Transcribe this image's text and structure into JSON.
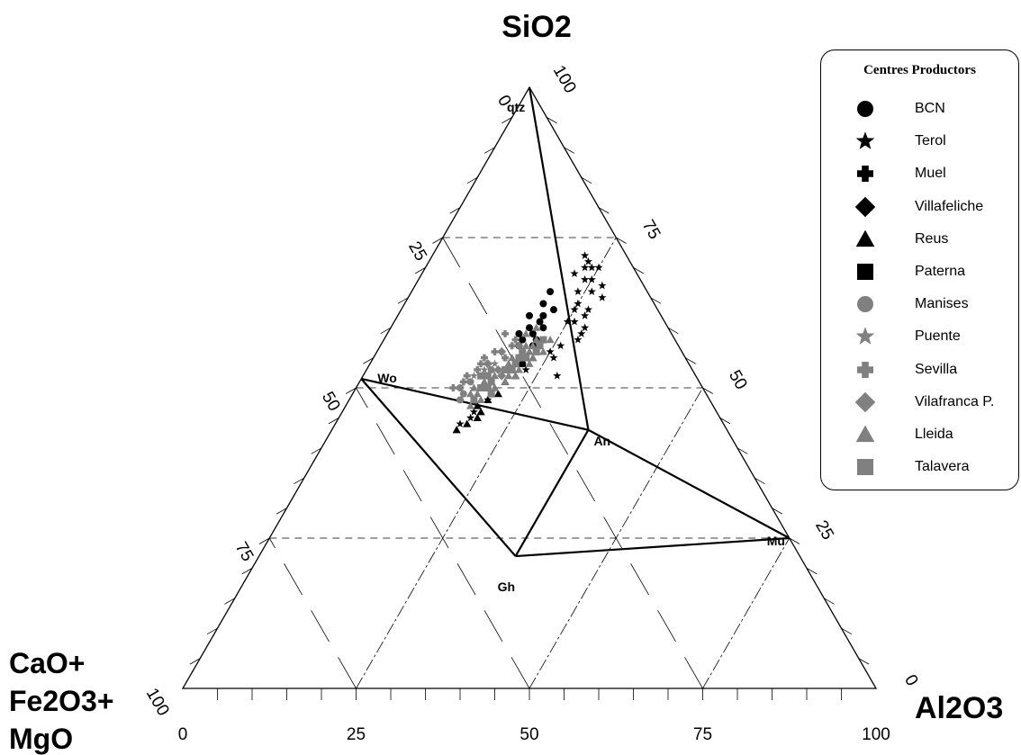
{
  "chart_data": {
    "type": "scatter",
    "subtype": "ternary",
    "vertex_labels": {
      "top": "SiO2",
      "left": [
        "CaO+",
        "Fe2O3+",
        "MgO"
      ],
      "right": "Al2O3"
    },
    "axis_ticks": [
      "0",
      "25",
      "50",
      "75",
      "100"
    ],
    "grid": "dashed lines at 25, 50, 75 for each component",
    "phases": [
      {
        "name": "qtz",
        "sio2": 100,
        "al2o3": 0,
        "cfm": 0
      },
      {
        "name": "Wo",
        "sio2": 51.5,
        "al2o3": 0,
        "cfm": 48.5
      },
      {
        "name": "An",
        "sio2": 43,
        "al2o3": 37,
        "cfm": 20
      },
      {
        "name": "Gh",
        "sio2": 22,
        "al2o3": 37,
        "cfm": 41
      },
      {
        "name": "Mu",
        "sio2": 25,
        "al2o3": 75,
        "cfm": 0
      }
    ],
    "tie_lines": [
      [
        "qtz",
        "An"
      ],
      [
        "Wo",
        "An"
      ],
      [
        "Wo",
        "Gh"
      ],
      [
        "Gh",
        "An"
      ],
      [
        "An",
        "Mu"
      ],
      [
        "Gh",
        "Mu"
      ]
    ],
    "legend": {
      "title": "Centres Productors",
      "position": "top-right",
      "entries": [
        {
          "label": "BCN",
          "symbol": "circle",
          "color": "#000000"
        },
        {
          "label": "Terol",
          "symbol": "star",
          "color": "#000000"
        },
        {
          "label": "Muel",
          "symbol": "plus",
          "color": "#000000"
        },
        {
          "label": "Villafeliche",
          "symbol": "diamond",
          "color": "#000000"
        },
        {
          "label": "Reus",
          "symbol": "triangle",
          "color": "#000000"
        },
        {
          "label": "Paterna",
          "symbol": "square",
          "color": "#000000"
        },
        {
          "label": "Manises",
          "symbol": "circle",
          "color": "#808080"
        },
        {
          "label": "Puente",
          "symbol": "star",
          "color": "#808080"
        },
        {
          "label": "Sevilla",
          "symbol": "plus",
          "color": "#808080"
        },
        {
          "label": "Vilafranca P.",
          "symbol": "diamond",
          "color": "#808080"
        },
        {
          "label": "Lleida",
          "symbol": "triangle",
          "color": "#808080"
        },
        {
          "label": "Talavera",
          "symbol": "square",
          "color": "#808080"
        }
      ]
    },
    "series": [
      {
        "name": "BCN",
        "points": [
          [
            66,
            20
          ],
          [
            64,
            20
          ],
          [
            63,
            22
          ],
          [
            62,
            21
          ],
          [
            61,
            21
          ],
          [
            60,
            22
          ],
          [
            59,
            21
          ],
          [
            58,
            22
          ],
          [
            57,
            22
          ],
          [
            60,
            20
          ],
          [
            62,
            19
          ],
          [
            58,
            20
          ],
          [
            56,
            21
          ],
          [
            55,
            21
          ],
          [
            59,
            19
          ],
          [
            57,
            20
          ],
          [
            54,
            22
          ]
        ]
      },
      {
        "name": "Terol",
        "points": [
          [
            72,
            22
          ],
          [
            71,
            23
          ],
          [
            70,
            24
          ],
          [
            69,
            22
          ],
          [
            70,
            25
          ],
          [
            68,
            25
          ],
          [
            67,
            27
          ],
          [
            66,
            26
          ],
          [
            65,
            28
          ],
          [
            63,
            27
          ],
          [
            62,
            27
          ],
          [
            60,
            28
          ],
          [
            59,
            28
          ],
          [
            58,
            28
          ],
          [
            55,
            26
          ],
          [
            52,
            28
          ],
          [
            64,
            25
          ],
          [
            61,
            26
          ],
          [
            57,
            26
          ],
          [
            70,
            23
          ],
          [
            66,
            24
          ],
          [
            63,
            25
          ],
          [
            56,
            25
          ],
          [
            53,
            23
          ],
          [
            48,
            20
          ],
          [
            46,
            19
          ],
          [
            45,
            19
          ],
          [
            44,
            18
          ],
          [
            61,
            25
          ],
          [
            68,
            24
          ]
        ]
      },
      {
        "name": "Reus",
        "points": [
          [
            47,
            19
          ],
          [
            46,
            20
          ],
          [
            45,
            20
          ],
          [
            44,
            19
          ],
          [
            43,
            18
          ],
          [
            48,
            20
          ],
          [
            50,
            20
          ],
          [
            52,
            22
          ],
          [
            54,
            22
          ],
          [
            56,
            22
          ],
          [
            49,
            21
          ],
          [
            51,
            21
          ],
          [
            55,
            23
          ]
        ]
      },
      {
        "name": "Manises",
        "points": [
          [
            50,
            15
          ],
          [
            49,
            16
          ],
          [
            48,
            16
          ],
          [
            51,
            16
          ],
          [
            52,
            17
          ],
          [
            53,
            18
          ]
        ]
      },
      {
        "name": "Puente",
        "points": [
          [
            53,
            17
          ],
          [
            52,
            16
          ],
          [
            54,
            18
          ],
          [
            55,
            19
          ]
        ]
      },
      {
        "name": "Sevilla",
        "points": [
          [
            55,
            16
          ],
          [
            54,
            16
          ],
          [
            53,
            16
          ],
          [
            52,
            15
          ],
          [
            56,
            17
          ],
          [
            57,
            19
          ],
          [
            58,
            19
          ],
          [
            51,
            15
          ],
          [
            50,
            14
          ],
          [
            55,
            19
          ],
          [
            59,
            17
          ],
          [
            54,
            17
          ]
        ]
      },
      {
        "name": "Vilafranca P.",
        "points": [
          [
            54,
            17
          ],
          [
            53,
            19
          ],
          [
            52,
            20
          ],
          [
            56,
            18
          ],
          [
            57,
            20
          ]
        ]
      },
      {
        "name": "Lleida",
        "points": [
          [
            50,
            17
          ],
          [
            51,
            18
          ],
          [
            52,
            19
          ],
          [
            53,
            20
          ],
          [
            54,
            21
          ],
          [
            55,
            21
          ],
          [
            56,
            22
          ],
          [
            57,
            22
          ],
          [
            49,
            18
          ],
          [
            48,
            19
          ],
          [
            50,
            20
          ],
          [
            51,
            21
          ],
          [
            53,
            22
          ],
          [
            55,
            23
          ],
          [
            58,
            22
          ],
          [
            52,
            22
          ],
          [
            54,
            23
          ],
          [
            56,
            24
          ],
          [
            58,
            24
          ],
          [
            60,
            21
          ],
          [
            59,
            20
          ],
          [
            57,
            21
          ],
          [
            55,
            20
          ],
          [
            53,
            18
          ],
          [
            51,
            19
          ],
          [
            49,
            17
          ],
          [
            47,
            18
          ],
          [
            50,
            19
          ],
          [
            52,
            21
          ],
          [
            54,
            20
          ]
        ]
      },
      {
        "name": "Talavera",
        "points": [
          [
            51,
            19
          ],
          [
            50,
            19
          ],
          [
            49,
            20
          ],
          [
            48,
            18
          ],
          [
            52,
            18
          ],
          [
            53,
            20
          ],
          [
            55,
            22
          ],
          [
            54,
            21
          ],
          [
            56,
            21
          ],
          [
            57,
            23
          ],
          [
            58,
            23
          ],
          [
            50,
            18
          ],
          [
            52,
            17
          ],
          [
            53,
            21
          ],
          [
            55,
            21
          ],
          [
            56,
            23
          ]
        ]
      }
    ]
  }
}
